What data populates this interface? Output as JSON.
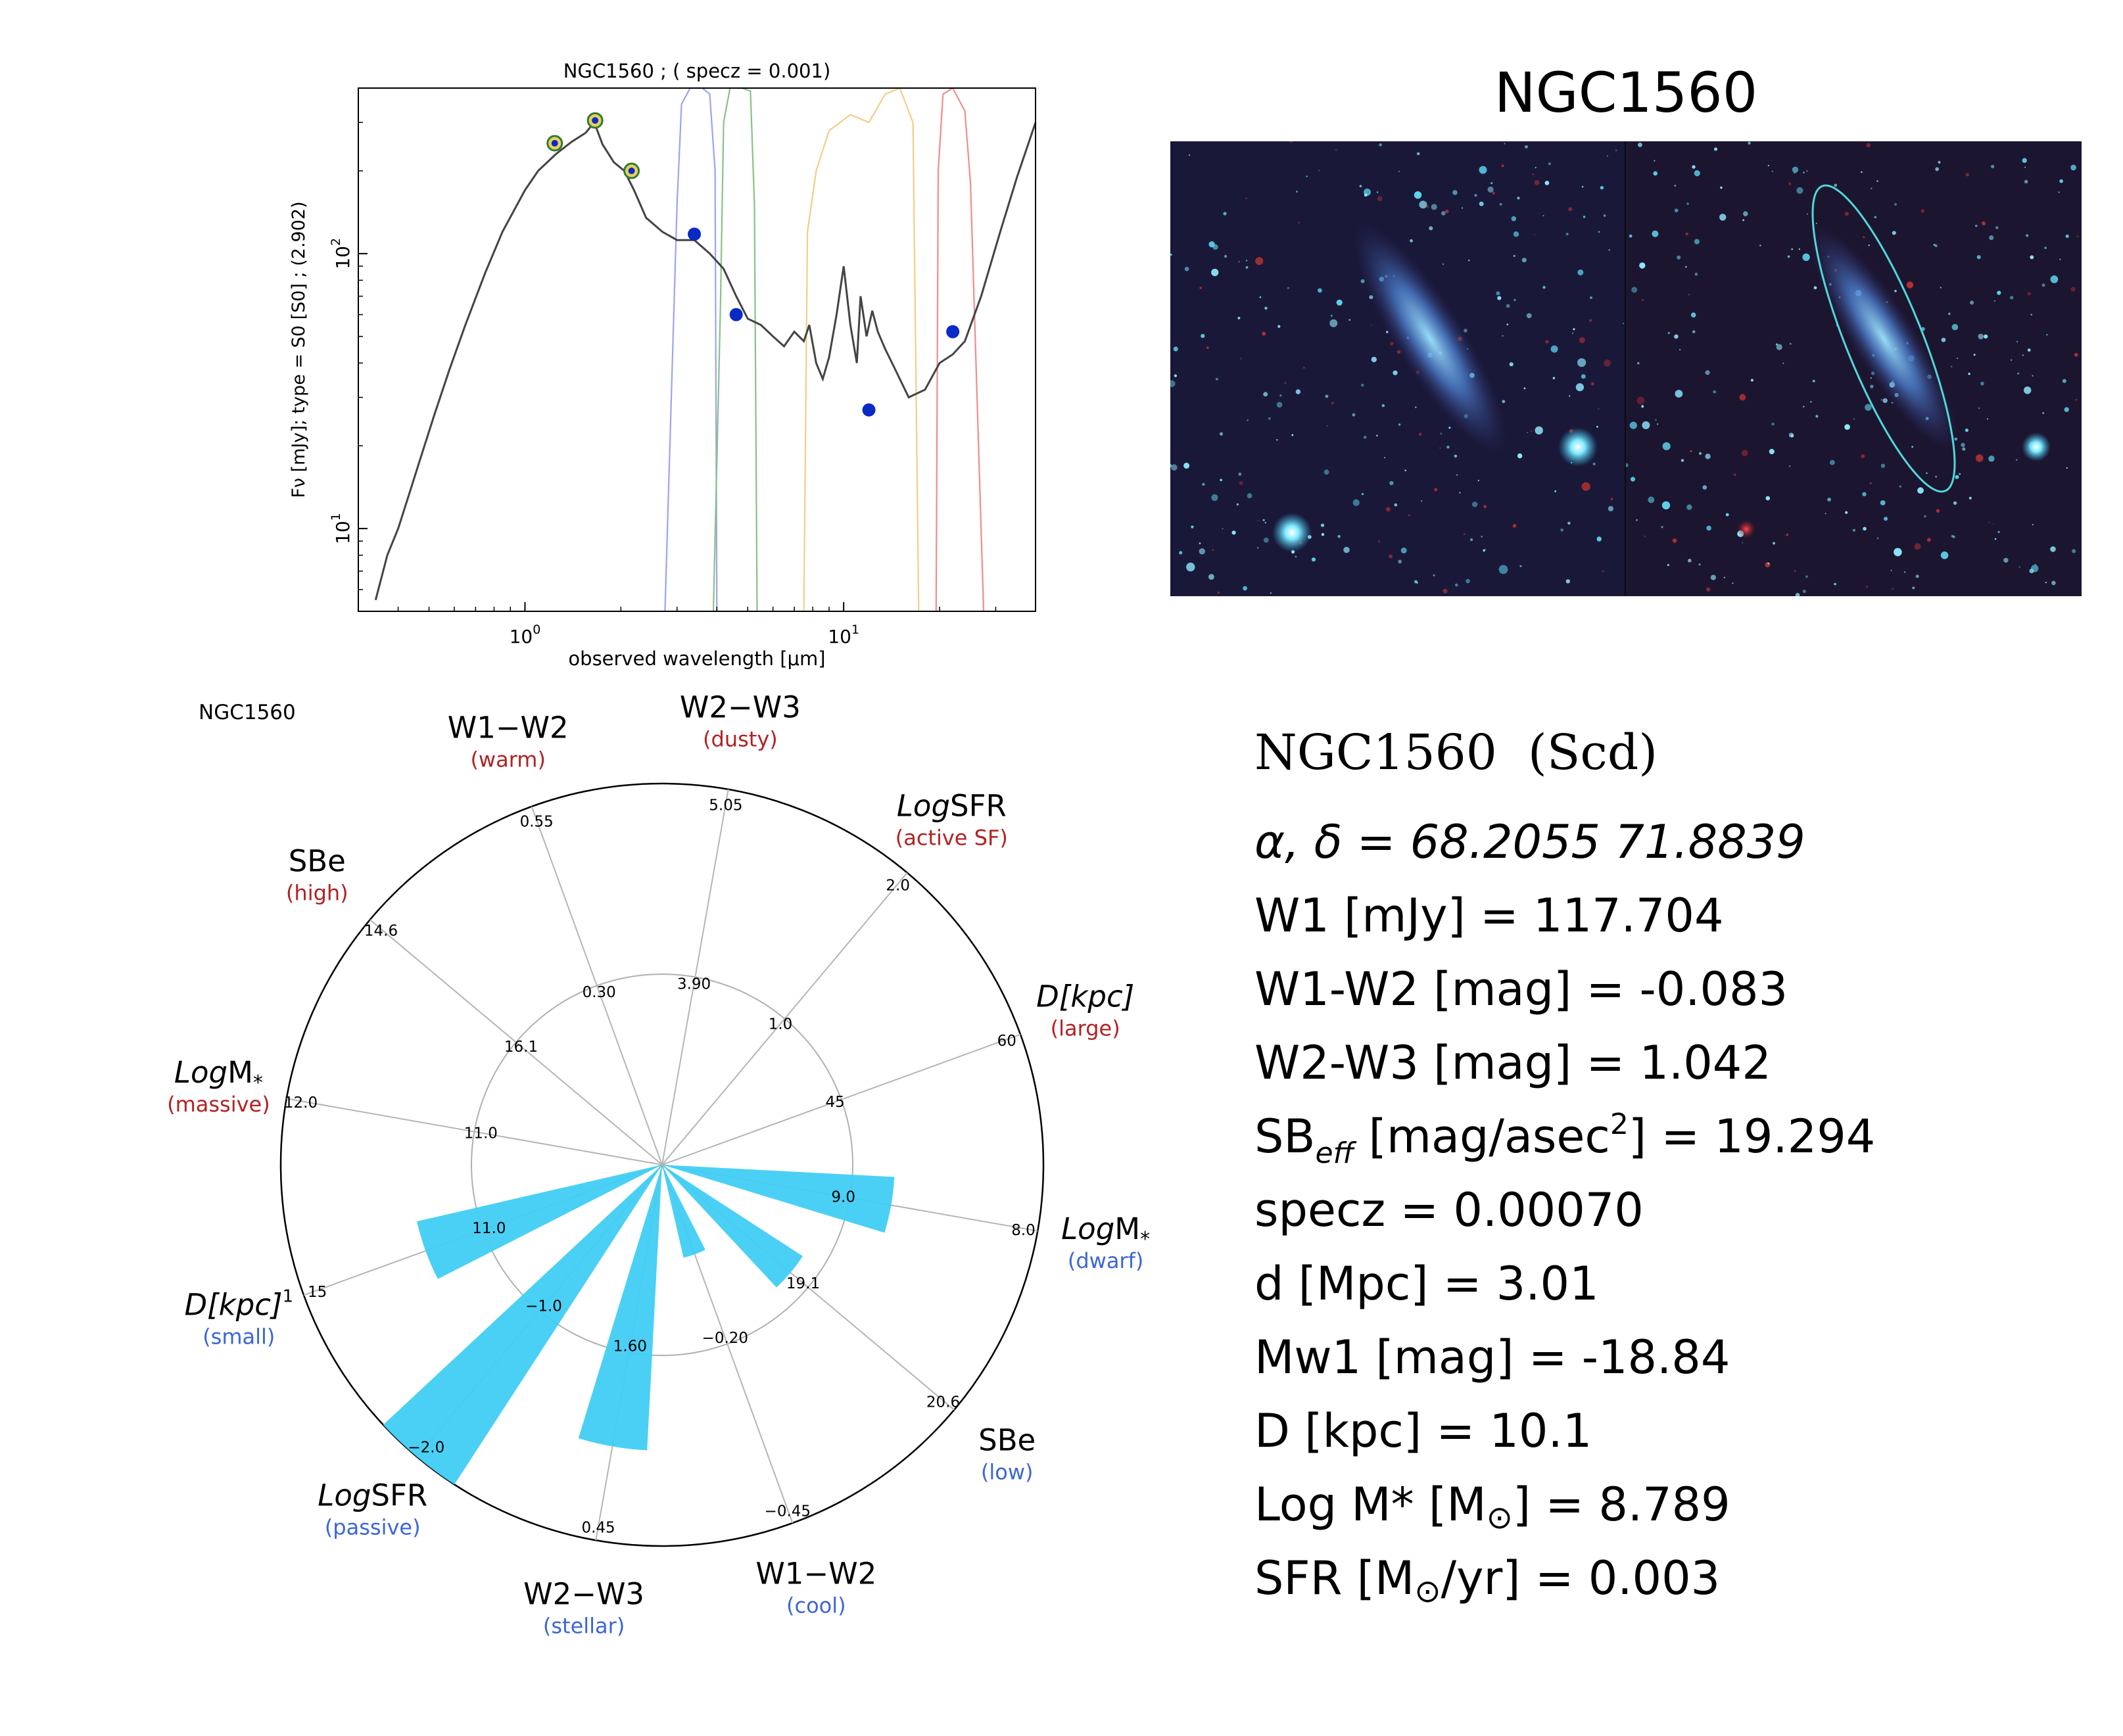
{
  "sed_plot": {
    "title": "NGC1560 ; ( specz = 0.001)",
    "xlabel": "observed wavelength [μm]",
    "ylabel": "Fν [mJy];  type = S0 [S0] ; (2.902)",
    "x_ticks": [
      {
        "base": "10",
        "exp": "0",
        "value": 1
      },
      {
        "base": "10",
        "exp": "1",
        "value": 10
      }
    ],
    "y_ticks": [
      {
        "base": "10",
        "exp": "1",
        "value": 10
      },
      {
        "base": "10",
        "exp": "2",
        "value": 100
      }
    ],
    "colors": {
      "model": "#444444",
      "points": "#0a2ac8",
      "filter_w1": "#9aa5ee",
      "filter_w2": "#86c285",
      "filter_w3": "#f5cc88",
      "filter_w4": "#f08c8c"
    }
  },
  "image_panel": {
    "title": "NGC1560",
    "description_colors": {
      "ellipse": "#4fd8d8",
      "background": "#141428"
    }
  },
  "radar": {
    "corner_label": "NGC1560",
    "wedge_color": "#41cdf4",
    "axes": [
      {
        "label": "W1−W2",
        "sub": "(warm)",
        "sub_color": "#b22222",
        "ticks": [
          "0.55",
          "0.30"
        ]
      },
      {
        "label": "W2−W3",
        "sub": "(dusty)",
        "sub_color": "#b22222",
        "ticks": [
          "5.05",
          "3.90"
        ]
      },
      {
        "label": "LogSFR",
        "sub": "(active SF)",
        "sub_color": "#b22222",
        "ticks": [
          "2.0",
          "1.0"
        ]
      },
      {
        "label": "D[kpc]",
        "sub": "(large)",
        "sub_color": "#b22222",
        "ticks": [
          "60",
          "45"
        ]
      },
      {
        "label": "LogM*",
        "sub": "(dwarf)",
        "sub_color": "#3c66d6",
        "ticks": [
          "8.0",
          "9.0"
        ]
      },
      {
        "label": "SBe",
        "sub": "(low)",
        "sub_color": "#3c66d6",
        "ticks": [
          "20.6",
          "19.1"
        ]
      },
      {
        "label": "W1−W2",
        "sub": "(cool)",
        "sub_color": "#3c66d6",
        "ticks": [
          "−0.45",
          "−0.20"
        ]
      },
      {
        "label": "W2−W3",
        "sub": "(stellar)",
        "sub_color": "#3c66d6",
        "ticks": [
          "0.45",
          "1.60"
        ]
      },
      {
        "label": "LogSFR",
        "sub": "(passive)",
        "sub_color": "#3c66d6",
        "ticks": [
          "−2.0",
          "−1.0"
        ]
      },
      {
        "label": "D[kpc]",
        "sup": "1",
        "sub": "(small)",
        "sub_color": "#3c66d6",
        "ticks": [
          "15",
          "11.0"
        ]
      },
      {
        "label": "LogM*",
        "sub": "(massive)",
        "sub_color": "#b22222",
        "ticks": [
          "12.0",
          "11.0"
        ]
      },
      {
        "label": "SBe",
        "sub": "(high)",
        "sub_color": "#b22222",
        "ticks": [
          "14.6",
          "16.1"
        ]
      }
    ]
  },
  "info": {
    "title": "NGC1560  (Scd)",
    "radec": "α, δ = 68.2055 71.8839",
    "w1": "W1 [mJy] = 117.704",
    "w1w2": "W1-W2 [mag] = -0.083",
    "w2w3": "W2-W3 [mag] = 1.042",
    "sb_prefix": "SB",
    "sb_sub": "eff",
    "sb_mid": " [mag/asec",
    "sb_sup": "2",
    "sb_rest": "] = 19.294",
    "specz": "specz = 0.00070",
    "d": "d [Mpc] = 3.01",
    "mw1": "Mw1 [mag] = -18.84",
    "D": "D [kpc] = 10.1",
    "logm_prefix": "Log M* [M",
    "logm_sub": "⊙",
    "logm_rest": "] = 8.789",
    "sfr_prefix": "SFR [M",
    "sfr_sub": "⊙",
    "sfr_rest": "/yr] = 0.003"
  },
  "chart_data": [
    {
      "type": "line",
      "title": "NGC1560 ; ( specz = 0.001)",
      "xlabel": "observed wavelength [μm]",
      "ylabel": "Fν [mJy];  type = S0 [S0] ; (2.902)",
      "xscale": "log",
      "yscale": "log",
      "xlim": [
        0.3,
        40
      ],
      "ylim": [
        5,
        400
      ],
      "series": [
        {
          "name": "",
          "kind": "model",
          "x": [
            0.34,
            0.37,
            0.4,
            0.43,
            0.47,
            0.52,
            0.58,
            0.65,
            0.75,
            0.85,
            1.0,
            1.1,
            1.25,
            1.4,
            1.55,
            1.65,
            1.75,
            1.9,
            2.05,
            2.2,
            2.4,
            2.7,
            3.0,
            3.4,
            3.8,
            4.2,
            4.6,
            5.0,
            5.5,
            6.0,
            6.5,
            7.0,
            7.5,
            7.8,
            8.2,
            8.6,
            9.0,
            9.5,
            10.0,
            10.5,
            11.0,
            11.3,
            11.8,
            12.3,
            12.8,
            13.5,
            14.5,
            16.0,
            18.0,
            20.0,
            22.0,
            24.0,
            27.0,
            31.0,
            35.0,
            40.0
          ],
          "y": [
            5.5,
            8,
            10,
            13,
            18,
            26,
            38,
            55,
            85,
            120,
            170,
            200,
            230,
            255,
            275,
            300,
            250,
            215,
            200,
            170,
            135,
            120,
            112,
            112,
            100,
            88,
            70,
            58,
            55,
            50,
            46,
            52,
            48,
            55,
            40,
            35,
            42,
            60,
            90,
            55,
            40,
            70,
            50,
            62,
            52,
            45,
            38,
            30,
            32,
            40,
            43,
            48,
            70,
            120,
            190,
            300
          ]
        },
        {
          "name": "",
          "kind": "photometry",
          "x": [
            1.24,
            1.66,
            2.16,
            3.4,
            4.6,
            12.0,
            22.0
          ],
          "y": [
            252,
            305,
            200,
            117.7,
            60,
            27,
            52
          ]
        }
      ]
    },
    {
      "type": "radar",
      "title": "NGC1560",
      "axes": [
        "W1−W2 (warm)",
        "W2−W3 (dusty)",
        "LogSFR (active SF)",
        "D[kpc] (large)",
        "LogM* (dwarf)",
        "SBe (low)",
        "W1−W2 (cool)",
        "W2−W3 (stellar)",
        "LogSFR (passive)",
        "D[kpc] (small)",
        "LogM* (massive)",
        "SBe (high)"
      ],
      "wedges": [
        {
          "axis_angle_deg": 100,
          "radius": 0.61,
          "name": "LogM*"
        },
        {
          "axis_angle_deg": 130,
          "radius": 0.44,
          "name": "SBe"
        },
        {
          "axis_angle_deg": 160,
          "radius": 0.25,
          "name": "W1−W2"
        },
        {
          "axis_angle_deg": 190,
          "radius": 0.75,
          "name": "W2−W3"
        },
        {
          "axis_angle_deg": 220,
          "radius": 1.0,
          "name": "LogSFR"
        },
        {
          "axis_angle_deg": 250,
          "radius": 0.66,
          "name": "D[kpc]"
        }
      ]
    }
  ]
}
